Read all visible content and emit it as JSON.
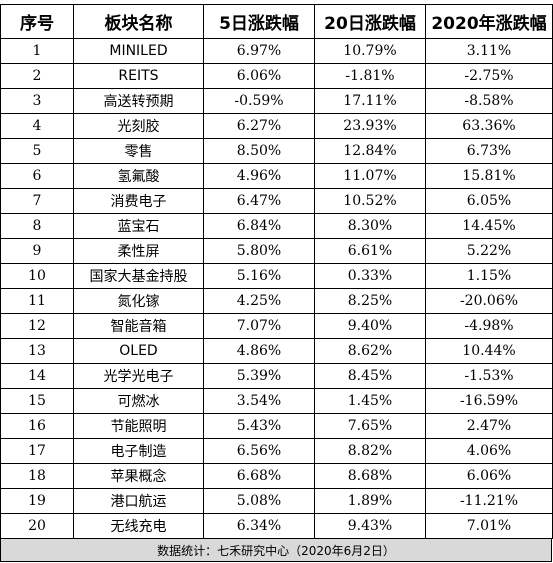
{
  "table": {
    "headers": [
      "序号",
      "板块名称",
      "5日涨跌幅",
      "20日涨跌幅",
      "2020年涨跌幅"
    ],
    "rows": [
      [
        "1",
        "MINILED",
        "6.97%",
        "10.79%",
        "3.11%"
      ],
      [
        "2",
        "REITS",
        "6.06%",
        "-1.81%",
        "-2.75%"
      ],
      [
        "3",
        "高送转预期",
        "-0.59%",
        "17.11%",
        "-8.58%"
      ],
      [
        "4",
        "光刻胶",
        "6.27%",
        "23.93%",
        "63.36%"
      ],
      [
        "5",
        "零售",
        "8.50%",
        "12.84%",
        "6.73%"
      ],
      [
        "6",
        "氢氟酸",
        "4.96%",
        "11.07%",
        "15.81%"
      ],
      [
        "7",
        "消费电子",
        "6.47%",
        "10.52%",
        "6.05%"
      ],
      [
        "8",
        "蓝宝石",
        "6.84%",
        "8.30%",
        "14.45%"
      ],
      [
        "9",
        "柔性屏",
        "5.80%",
        "6.61%",
        "5.22%"
      ],
      [
        "10",
        "国家大基金持股",
        "5.16%",
        "0.33%",
        "1.15%"
      ],
      [
        "11",
        "氮化镓",
        "4.25%",
        "8.25%",
        "-20.06%"
      ],
      [
        "12",
        "智能音箱",
        "7.07%",
        "9.40%",
        "-4.98%"
      ],
      [
        "13",
        "OLED",
        "4.86%",
        "8.62%",
        "10.44%"
      ],
      [
        "14",
        "光学光电子",
        "5.39%",
        "8.45%",
        "-1.53%"
      ],
      [
        "15",
        "可燃冰",
        "3.54%",
        "1.45%",
        "-16.59%"
      ],
      [
        "16",
        "节能照明",
        "5.43%",
        "7.65%",
        "2.47%"
      ],
      [
        "17",
        "电子制造",
        "6.56%",
        "8.82%",
        "4.06%"
      ],
      [
        "18",
        "苹果概念",
        "6.68%",
        "8.68%",
        "6.06%"
      ],
      [
        "19",
        "港口航运",
        "5.08%",
        "1.89%",
        "-11.21%"
      ],
      [
        "20",
        "无线充电",
        "6.34%",
        "9.43%",
        "7.01%"
      ]
    ]
  },
  "footer": {
    "source_note": "数据统计：七禾研究中心（2020年6月2日）"
  },
  "colors": {
    "border": "#000000",
    "footer_background": "#d9d9d9",
    "text": "#000000"
  }
}
